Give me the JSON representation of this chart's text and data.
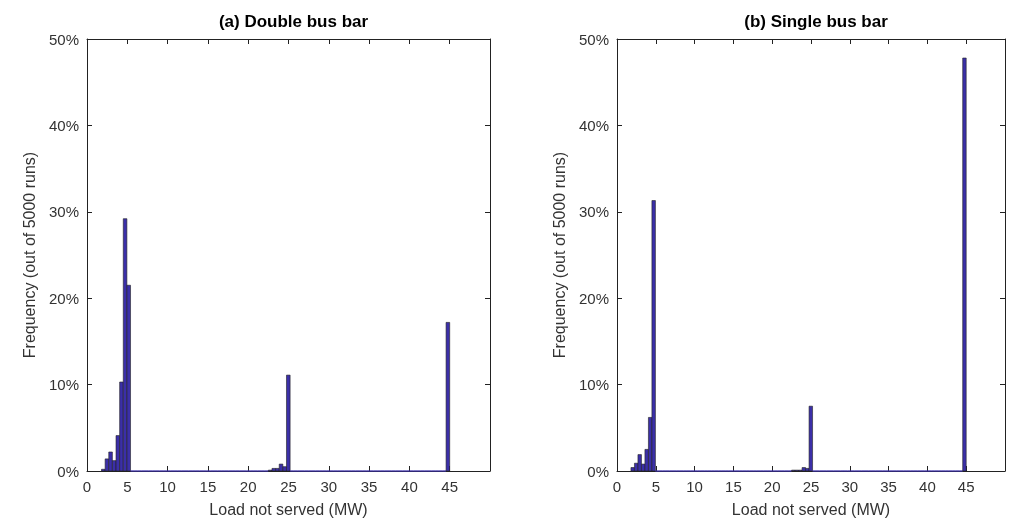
{
  "chart_data": [
    {
      "type": "histogram",
      "title": "(a) Double bus bar",
      "xlabel": "Load not served (MW)",
      "ylabel": "Frequency (out of 5000 runs)",
      "color": "#3b2fa8",
      "bins": [
        1.8,
        2.25,
        2.7,
        3.15,
        3.6,
        4.05,
        4.5,
        4.95,
        5.4,
        5.85,
        6.3,
        6.75,
        7.2,
        7.65,
        8.1,
        8.55,
        9,
        9.45,
        9.9,
        10.35,
        10.8,
        11.25,
        11.7,
        12.15,
        12.6,
        13.05,
        13.5,
        13.95,
        14.4,
        14.85,
        15.3,
        15.75,
        16.2,
        16.65,
        17.1,
        17.55,
        18,
        18.45,
        18.9,
        19.35,
        19.8,
        20.25,
        20.7,
        21.15,
        21.6,
        22.05,
        22.5,
        22.95,
        23.4,
        23.85,
        24.3,
        24.75,
        25.2,
        25.65,
        26.1,
        26.55,
        27,
        27.45,
        27.9,
        28.35,
        28.8,
        29.25,
        29.7,
        30.15,
        30.6,
        31.05,
        31.5,
        31.95,
        32.4,
        32.85,
        33.3,
        33.75,
        34.2,
        34.65,
        35.1,
        35.55,
        36,
        36.45,
        36.9,
        37.35,
        37.8,
        38.25,
        38.7,
        39.15,
        39.6,
        40.05,
        40.5,
        40.95,
        41.4,
        41.85,
        42.3,
        42.75,
        43.2,
        43.65,
        44.1,
        44.55,
        45
      ],
      "values": [
        0.2,
        1.4,
        2.2,
        1.2,
        4.1,
        10.3,
        29.2,
        21.5,
        0,
        0,
        0,
        0,
        0,
        0,
        0,
        0,
        0,
        0,
        0,
        0,
        0,
        0,
        0,
        0,
        0,
        0,
        0,
        0,
        0,
        0,
        0,
        0,
        0,
        0,
        0,
        0,
        0,
        0,
        0,
        0,
        0,
        0,
        0,
        0,
        0,
        0,
        0.1,
        0.3,
        0.3,
        0.8,
        0.5,
        11.1,
        0,
        0,
        0,
        0,
        0,
        0,
        0,
        0,
        0,
        0,
        0,
        0,
        0,
        0,
        0,
        0,
        0,
        0,
        0,
        0,
        0,
        0,
        0,
        0,
        0,
        0,
        0,
        0,
        0,
        0,
        0,
        0,
        0,
        0,
        0,
        0,
        0,
        0,
        0,
        0,
        0,
        0,
        0,
        17.2
      ],
      "xlim": [
        0,
        50
      ],
      "xticks": [
        0,
        5,
        10,
        15,
        20,
        25,
        30,
        35,
        40,
        45,
        {
          "value": 50,
          "label": null
        }
      ],
      "ylim": [
        0,
        50
      ],
      "yticks": [
        {
          "value": 0,
          "label": "0%"
        },
        {
          "value": 10,
          "label": "10%"
        },
        {
          "value": 20,
          "label": "20%"
        },
        {
          "value": 30,
          "label": "30%"
        },
        {
          "value": 40,
          "label": "40%"
        },
        {
          "value": 50,
          "label": "50%"
        }
      ],
      "grid": false
    },
    {
      "type": "histogram",
      "title": "(b) Single bus bar",
      "xlabel": "Load not served (MW)",
      "ylabel": "Frequency (out of 5000 runs)",
      "color": "#3b2fa8",
      "bins": [
        1.8,
        2.25,
        2.7,
        3.15,
        3.6,
        4.05,
        4.5,
        4.95,
        5.4,
        5.85,
        6.3,
        6.75,
        7.2,
        7.65,
        8.1,
        8.55,
        9,
        9.45,
        9.9,
        10.35,
        10.8,
        11.25,
        11.7,
        12.15,
        12.6,
        13.05,
        13.5,
        13.95,
        14.4,
        14.85,
        15.3,
        15.75,
        16.2,
        16.65,
        17.1,
        17.55,
        18,
        18.45,
        18.9,
        19.35,
        19.8,
        20.25,
        20.7,
        21.15,
        21.6,
        22.05,
        22.5,
        22.95,
        23.4,
        23.85,
        24.3,
        24.75,
        25.2,
        25.65,
        26.1,
        26.55,
        27,
        27.45,
        27.9,
        28.35,
        28.8,
        29.25,
        29.7,
        30.15,
        30.6,
        31.05,
        31.5,
        31.95,
        32.4,
        32.85,
        33.3,
        33.75,
        34.2,
        34.65,
        35.1,
        35.55,
        36,
        36.45,
        36.9,
        37.35,
        37.8,
        38.25,
        38.7,
        39.15,
        39.6,
        40.05,
        40.5,
        40.95,
        41.4,
        41.85,
        42.3,
        42.75,
        43.2,
        43.65,
        44.1,
        44.55,
        45
      ],
      "values": [
        0.4,
        0.9,
        1.9,
        0.8,
        2.5,
        6.2,
        31.3,
        0,
        0,
        0,
        0,
        0,
        0,
        0,
        0,
        0,
        0,
        0,
        0,
        0,
        0,
        0,
        0,
        0,
        0,
        0,
        0,
        0,
        0,
        0,
        0,
        0,
        0,
        0,
        0,
        0,
        0,
        0,
        0,
        0,
        0,
        0,
        0,
        0,
        0,
        0,
        0.1,
        0.1,
        0.1,
        0.4,
        0.3,
        7.5,
        0,
        0,
        0,
        0,
        0,
        0,
        0,
        0,
        0,
        0,
        0,
        0,
        0,
        0,
        0,
        0,
        0,
        0,
        0,
        0,
        0,
        0,
        0,
        0,
        0,
        0,
        0,
        0,
        0,
        0,
        0,
        0,
        0,
        0,
        0,
        0,
        0,
        0,
        0,
        0,
        0,
        0,
        0,
        47.8
      ],
      "xlim": [
        0,
        50
      ],
      "xticks": [
        0,
        5,
        10,
        15,
        20,
        25,
        30,
        35,
        40,
        45,
        {
          "value": 50,
          "label": null
        }
      ],
      "ylim": [
        0,
        50
      ],
      "yticks": [
        {
          "value": 0,
          "label": "0%"
        },
        {
          "value": 10,
          "label": "10%"
        },
        {
          "value": 20,
          "label": "20%"
        },
        {
          "value": 30,
          "label": "30%"
        },
        {
          "value": 40,
          "label": "40%"
        },
        {
          "value": 50,
          "label": "50%"
        }
      ],
      "grid": false
    }
  ]
}
